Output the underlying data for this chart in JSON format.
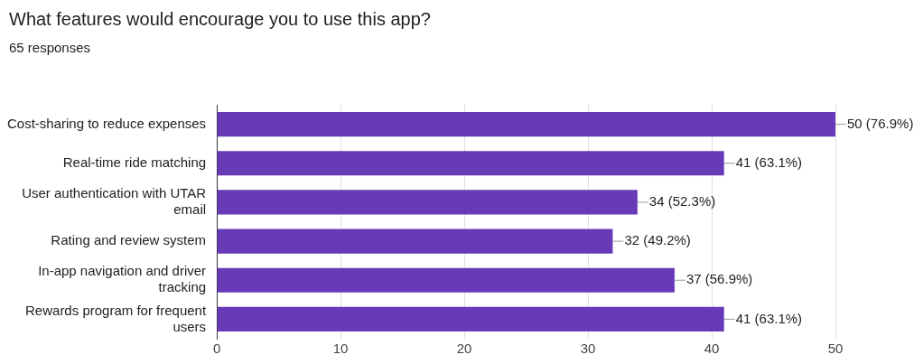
{
  "chart_data": {
    "type": "bar",
    "orientation": "horizontal",
    "title": "What features would encourage you to use this app?",
    "subtitle": "65 responses",
    "categories": [
      "Cost-sharing to reduce expenses",
      "Real-time ride matching",
      "User authentication with UTAR email",
      "Rating and review system",
      "In-app navigation and driver tracking",
      "Rewards program for frequent users"
    ],
    "values": [
      50,
      41,
      34,
      32,
      37,
      41
    ],
    "value_labels": [
      "50 (76.9%)",
      "41 (63.1%)",
      "34 (52.3%)",
      "32 (49.2%)",
      "37 (56.9%)",
      "41 (63.1%)"
    ],
    "color": "#673ab7",
    "xlim": [
      0,
      50
    ],
    "xticks": [
      0,
      10,
      20,
      30,
      40,
      50
    ],
    "grid": "x",
    "legend": false
  }
}
